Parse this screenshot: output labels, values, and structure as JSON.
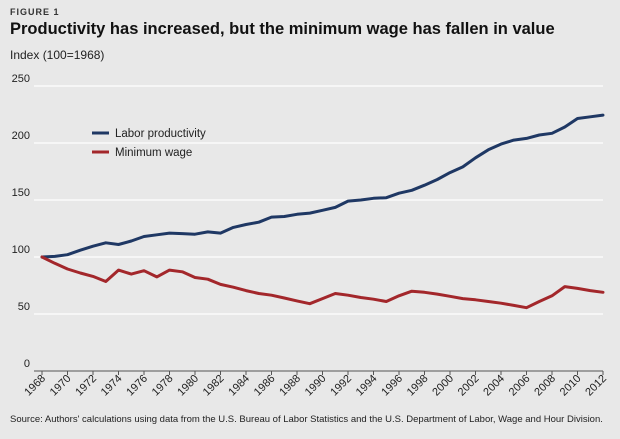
{
  "figure_label": "FIGURE 1",
  "title": "Productivity has increased, but the minimum wage has fallen in value",
  "source": "Source: Authors' calculations using data from the U.S. Bureau of Labor Statistics and the U.S. Department of Labor, Wage and Hour Division.",
  "colors": {
    "productivity": "#1f3864",
    "minimum_wage": "#a3272b",
    "grid": "#ffffff",
    "background": "#e8e8e8"
  },
  "chart_data": {
    "type": "line",
    "ylabel": "Index (100=1968)",
    "xlabel": "",
    "ylim": [
      0,
      250
    ],
    "yticks": [
      0,
      50,
      100,
      150,
      200,
      250
    ],
    "xticks": [
      1968,
      1970,
      1972,
      1974,
      1976,
      1978,
      1980,
      1982,
      1984,
      1986,
      1988,
      1990,
      1992,
      1994,
      1996,
      1998,
      2000,
      2002,
      2004,
      2006,
      2008,
      2010,
      2012
    ],
    "grid": true,
    "legend_position": "upper-left",
    "x": [
      1968,
      1969,
      1970,
      1971,
      1972,
      1973,
      1974,
      1975,
      1976,
      1977,
      1978,
      1979,
      1980,
      1981,
      1982,
      1983,
      1984,
      1985,
      1986,
      1987,
      1988,
      1989,
      1990,
      1991,
      1992,
      1993,
      1994,
      1995,
      1996,
      1997,
      1998,
      1999,
      2000,
      2001,
      2002,
      2003,
      2004,
      2005,
      2006,
      2007,
      2008,
      2009,
      2010,
      2011,
      2012
    ],
    "series": [
      {
        "name": "Labor productivity",
        "values": [
          100,
          100.5,
          102,
          106,
          109.5,
          112.5,
          111,
          114,
          118,
          119.5,
          121,
          120.5,
          120,
          122,
          121,
          126,
          128.5,
          130.5,
          135,
          135.5,
          137.5,
          138.5,
          141,
          143.5,
          149,
          150,
          151.5,
          152,
          156,
          158.5,
          163,
          168,
          174,
          179,
          187,
          194,
          199,
          202.5,
          204,
          207,
          208.5,
          214,
          221.5,
          223,
          224.5
        ]
      },
      {
        "name": "Minimum wage",
        "values": [
          100,
          94.5,
          89.5,
          86,
          83,
          78.5,
          88.5,
          85,
          88,
          82.5,
          88.5,
          87,
          82,
          80.5,
          76,
          73.5,
          70.5,
          68,
          66.5,
          64,
          61.5,
          59,
          63.5,
          68,
          66.5,
          64.5,
          63,
          61,
          66,
          70,
          69,
          67.5,
          65.5,
          63.5,
          62.5,
          61,
          59.5,
          57.5,
          55.5,
          61,
          66,
          74,
          72.5,
          70.5,
          69
        ]
      }
    ]
  }
}
